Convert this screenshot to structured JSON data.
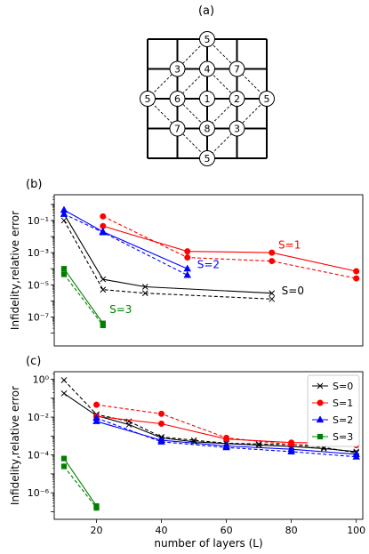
{
  "panel_a": {
    "label": "(a)",
    "node_labels": [
      "5",
      "3",
      "4",
      "7",
      "5",
      "6",
      "1",
      "2",
      "5",
      "7",
      "8",
      "3",
      "5"
    ]
  },
  "chart_data": [
    {
      "type": "line",
      "panel": "(b)",
      "xlabel": "",
      "ylabel": "Infidelity,relative error",
      "xlim": [
        7,
        102
      ],
      "ylog": true,
      "ylim_exp": [
        -8.8,
        0.6
      ],
      "yticks": [
        {
          "v": -1,
          "label": "10⁻¹"
        },
        {
          "v": -3,
          "label": "10⁻³"
        },
        {
          "v": -5,
          "label": "10⁻⁵"
        },
        {
          "v": -7,
          "label": "10⁻⁷"
        }
      ],
      "series": [
        {
          "name": "S=0",
          "color": "#000000",
          "marker": "x",
          "style": "solid",
          "x": [
            10,
            22,
            35,
            74
          ],
          "y": [
            0.25,
            2.2e-05,
            7.5e-06,
            3e-06
          ]
        },
        {
          "name": "S=0",
          "color": "#000000",
          "marker": "x",
          "style": "dashed",
          "x": [
            10,
            22,
            35,
            74
          ],
          "y": [
            0.1,
            5e-06,
            3e-06,
            1.3e-06
          ]
        },
        {
          "name": "S=1",
          "color": "#ff0000",
          "marker": "o",
          "style": "solid",
          "x": [
            22,
            48,
            74,
            100
          ],
          "y": [
            0.045,
            0.0012,
            0.001,
            7e-05
          ]
        },
        {
          "name": "S=1",
          "color": "#ff0000",
          "marker": "o",
          "style": "dashed",
          "x": [
            22,
            48,
            74,
            100
          ],
          "y": [
            0.18,
            0.0005,
            0.0003,
            2.5e-05
          ]
        },
        {
          "name": "S=2",
          "color": "#0000ff",
          "marker": "^",
          "style": "solid",
          "x": [
            10,
            22,
            48
          ],
          "y": [
            0.45,
            0.02,
            0.0001
          ]
        },
        {
          "name": "S=2",
          "color": "#0000ff",
          "marker": "^",
          "style": "dashed",
          "x": [
            10,
            22,
            48
          ],
          "y": [
            0.25,
            0.018,
            4e-05
          ]
        },
        {
          "name": "S=3",
          "color": "#008000",
          "marker": "s",
          "style": "solid",
          "x": [
            10,
            22
          ],
          "y": [
            0.0001,
            4e-08
          ]
        },
        {
          "name": "S=3",
          "color": "#008000",
          "marker": "s",
          "style": "dashed",
          "x": [
            10,
            22
          ],
          "y": [
            4.5e-05,
            3e-08
          ]
        }
      ],
      "annotations": [
        {
          "text": "S=1",
          "color": "#ff0000",
          "x": 76,
          "y": 0.0018
        },
        {
          "text": "S=2",
          "color": "#0000ff",
          "x": 51,
          "y": 0.00011
        },
        {
          "text": "S=0",
          "color": "#000000",
          "x": 77,
          "y": 2.5e-06
        },
        {
          "text": "S=3",
          "color": "#008000",
          "x": 24,
          "y": 1.8e-07
        }
      ]
    },
    {
      "type": "line",
      "panel": "(c)",
      "xlabel": "number of layers (L)",
      "ylabel": "Infidelity,relative error",
      "xlim": [
        7,
        102
      ],
      "ylog": true,
      "ylim_exp": [
        -7.4,
        0.4
      ],
      "xticks": [
        20,
        40,
        60,
        80,
        100
      ],
      "yticks": [
        {
          "v": 0,
          "label": "10⁰"
        },
        {
          "v": -2,
          "label": "10⁻²"
        },
        {
          "v": -4,
          "label": "10⁻⁴"
        },
        {
          "v": -6,
          "label": "10⁻⁶"
        }
      ],
      "legend": {
        "position": "top-right",
        "entries": [
          {
            "label": "S=0",
            "color": "#000000",
            "marker": "x"
          },
          {
            "label": "S=1",
            "color": "#ff0000",
            "marker": "o"
          },
          {
            "label": "S=2",
            "color": "#0000ff",
            "marker": "^"
          },
          {
            "label": "S=3",
            "color": "#008000",
            "marker": "s"
          }
        ]
      },
      "series": [
        {
          "name": "S=0",
          "color": "#000000",
          "marker": "x",
          "style": "solid",
          "x": [
            10,
            20,
            30,
            40,
            50,
            60,
            70,
            80,
            90,
            100
          ],
          "y": [
            0.18,
            0.012,
            0.004,
            0.0008,
            0.0005,
            0.0004,
            0.00033,
            0.00028,
            0.00022,
            0.00015
          ]
        },
        {
          "name": "S=0",
          "color": "#000000",
          "marker": "x",
          "style": "dashed",
          "x": [
            10,
            20,
            30,
            40,
            50,
            60,
            70,
            80,
            90,
            100
          ],
          "y": [
            0.9,
            0.014,
            0.006,
            0.0009,
            0.0006,
            0.00042,
            0.00038,
            0.00035,
            0.00025,
            0.00013
          ]
        },
        {
          "name": "S=1",
          "color": "#ff0000",
          "marker": "o",
          "style": "solid",
          "x": [
            20,
            40,
            60,
            80,
            100
          ],
          "y": [
            0.011,
            0.0045,
            0.0007,
            0.00045,
            0.00042
          ]
        },
        {
          "name": "S=1",
          "color": "#ff0000",
          "marker": "o",
          "style": "dashed",
          "x": [
            20,
            40,
            60,
            80,
            100
          ],
          "y": [
            0.045,
            0.015,
            0.0008,
            0.00035,
            0.00033
          ]
        },
        {
          "name": "S=2",
          "color": "#0000ff",
          "marker": "^",
          "style": "solid",
          "x": [
            20,
            40,
            60,
            80,
            100
          ],
          "y": [
            0.006,
            0.0006,
            0.0003,
            0.0002,
            0.00011
          ]
        },
        {
          "name": "S=2",
          "color": "#0000ff",
          "marker": "^",
          "style": "dashed",
          "x": [
            20,
            40,
            60,
            80,
            100
          ],
          "y": [
            0.009,
            0.0005,
            0.00025,
            0.00015,
            8e-05
          ]
        },
        {
          "name": "S=3",
          "color": "#008000",
          "marker": "s",
          "style": "solid",
          "x": [
            10,
            20
          ],
          "y": [
            6.5e-05,
            2e-07
          ]
        },
        {
          "name": "S=3",
          "color": "#008000",
          "marker": "s",
          "style": "dashed",
          "x": [
            10,
            20
          ],
          "y": [
            2.5e-05,
            1.6e-07
          ]
        }
      ]
    }
  ]
}
